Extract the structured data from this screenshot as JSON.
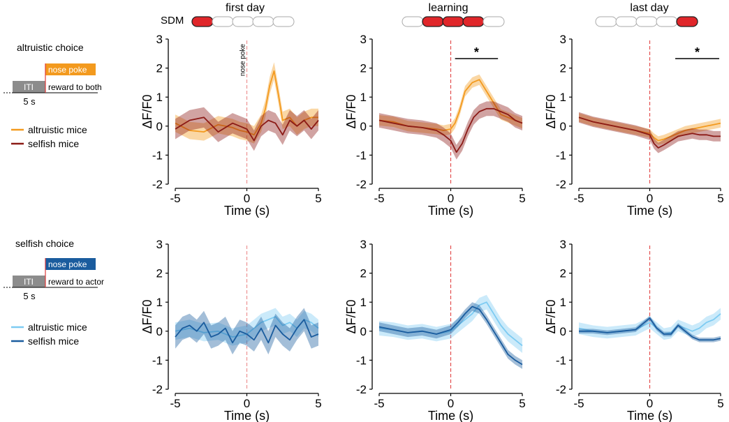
{
  "header": {
    "sdm_label": "SDM",
    "stages": [
      "first day",
      "learning",
      "last day"
    ],
    "sdm_highlight": [
      [
        0
      ],
      [
        1,
        2,
        3
      ],
      [
        4
      ]
    ],
    "pill_count": 5
  },
  "schematics": [
    {
      "title": "altruistic choice",
      "iti_label": "ITI",
      "poke_label": "nose poke",
      "reward_label": "reward to both",
      "duration_label": "5 s",
      "poke_color": "#F39A1E",
      "legend": [
        {
          "label": "altruistic mice",
          "color": "#F39A1E"
        },
        {
          "label": "selfish mice",
          "color": "#8B1A16"
        }
      ]
    },
    {
      "title": "selfish choice",
      "iti_label": "ITI",
      "poke_label": "nose poke",
      "reward_label": "reward to actor",
      "duration_label": "5 s",
      "poke_color": "#1A5C9E",
      "legend": [
        {
          "label": "altruistic mice",
          "color": "#7DCBF2"
        },
        {
          "label": "selfish mice",
          "color": "#1A5C9E"
        }
      ]
    }
  ],
  "colors": {
    "altruistic_orange": "#F39A1E",
    "selfish_red": "#8B1A16",
    "altruistic_blue": "#7DCBF2",
    "selfish_blue": "#1A5C9E",
    "pill_red": "#E0262A",
    "onset_line": "#E03A3A"
  },
  "chart_data": [
    {
      "type": "line",
      "panel": "altruistic choice / first day",
      "xlabel": "Time (s)",
      "ylabel": "ΔF/F0",
      "xlim": [
        -5,
        5
      ],
      "ylim": [
        -2,
        3
      ],
      "xticks": [
        -5,
        0,
        5
      ],
      "yticks": [
        -2,
        -1,
        0,
        1,
        2,
        3
      ],
      "onset_label": "nose poke",
      "series": [
        {
          "name": "altruistic mice",
          "x": [
            -5,
            -4,
            -3,
            -2,
            -1,
            -0.5,
            0,
            0.5,
            1,
            1.3,
            1.6,
            1.9,
            2.2,
            2.5,
            3,
            3.5,
            4,
            4.5,
            5
          ],
          "y": [
            0.1,
            -0.15,
            -0.2,
            0.05,
            -0.05,
            -0.15,
            -0.2,
            -0.3,
            0.1,
            0.6,
            1.4,
            1.9,
            1.1,
            0.2,
            0.3,
            0.0,
            0.2,
            0.3,
            0.3
          ],
          "err": 0.3
        },
        {
          "name": "selfish mice",
          "x": [
            -5,
            -4,
            -3,
            -2,
            -1,
            -0.5,
            0,
            0.5,
            1,
            1.5,
            2,
            2.5,
            3,
            3.5,
            4,
            4.5,
            5
          ],
          "y": [
            -0.1,
            0.2,
            0.3,
            -0.2,
            0.1,
            0.0,
            -0.1,
            -0.5,
            0.0,
            0.2,
            0.1,
            -0.3,
            0.2,
            0.0,
            0.2,
            -0.1,
            0.2
          ],
          "err": 0.35
        }
      ]
    },
    {
      "type": "line",
      "panel": "altruistic choice / learning",
      "xlabel": "Time (s)",
      "ylabel": "ΔF/F0",
      "xlim": [
        -5,
        5
      ],
      "ylim": [
        -2,
        3
      ],
      "xticks": [
        -5,
        0,
        5
      ],
      "yticks": [
        -2,
        -1,
        0,
        1,
        2,
        3
      ],
      "significance": {
        "label": "*",
        "x_start": 0.3,
        "x_end": 3.3
      },
      "series": [
        {
          "name": "altruistic mice",
          "x": [
            -5,
            -4,
            -3,
            -2,
            -1,
            -0.5,
            0,
            0.3,
            0.6,
            1,
            1.5,
            2,
            2.5,
            3,
            3.5,
            4,
            4.5,
            5
          ],
          "y": [
            0.2,
            0.15,
            0.0,
            -0.05,
            -0.1,
            -0.15,
            -0.1,
            0.1,
            0.5,
            1.2,
            1.5,
            1.6,
            1.2,
            0.8,
            0.4,
            0.3,
            0.2,
            0.1
          ],
          "err": 0.18
        },
        {
          "name": "selfish mice",
          "x": [
            -5,
            -4,
            -3,
            -2,
            -1,
            -0.5,
            0,
            0.4,
            0.8,
            1.2,
            1.6,
            2,
            2.5,
            3,
            3.5,
            4,
            4.5,
            5
          ],
          "y": [
            0.2,
            0.1,
            0.0,
            -0.05,
            -0.15,
            -0.3,
            -0.5,
            -0.9,
            -0.6,
            -0.1,
            0.3,
            0.5,
            0.6,
            0.6,
            0.5,
            0.4,
            0.2,
            0.1
          ],
          "err": 0.25
        }
      ]
    },
    {
      "type": "line",
      "panel": "altruistic choice / last day",
      "xlabel": "Time (s)",
      "ylabel": "ΔF/F0",
      "xlim": [
        -5,
        5
      ],
      "ylim": [
        -2,
        3
      ],
      "xticks": [
        -5,
        0,
        5
      ],
      "yticks": [
        -2,
        -1,
        0,
        1,
        2,
        3
      ],
      "significance": {
        "label": "*",
        "x_start": 1.8,
        "x_end": 4.9
      },
      "series": [
        {
          "name": "altruistic mice",
          "x": [
            -5,
            -4,
            -3,
            -2,
            -1,
            0,
            0.3,
            0.6,
            1,
            1.5,
            2,
            2.5,
            3,
            3.5,
            4,
            4.5,
            5
          ],
          "y": [
            0.3,
            0.15,
            0.05,
            -0.05,
            -0.15,
            -0.25,
            -0.4,
            -0.5,
            -0.45,
            -0.35,
            -0.25,
            -0.15,
            -0.1,
            -0.05,
            0.0,
            0.05,
            0.1
          ],
          "err": 0.15
        },
        {
          "name": "selfish mice",
          "x": [
            -5,
            -4,
            -3,
            -2,
            -1,
            0,
            0.3,
            0.6,
            1,
            1.5,
            2,
            2.5,
            3,
            3.5,
            4,
            4.5,
            5
          ],
          "y": [
            0.3,
            0.15,
            0.05,
            -0.05,
            -0.15,
            -0.3,
            -0.6,
            -0.75,
            -0.65,
            -0.5,
            -0.35,
            -0.3,
            -0.25,
            -0.3,
            -0.3,
            -0.35,
            -0.35
          ],
          "err": 0.18
        }
      ]
    },
    {
      "type": "line",
      "panel": "selfish choice / first day",
      "xlabel": "Time (s)",
      "ylabel": "ΔF/F0",
      "xlim": [
        -5,
        5
      ],
      "ylim": [
        -2,
        3
      ],
      "xticks": [
        -5,
        0,
        5
      ],
      "yticks": [
        -2,
        -1,
        0,
        1,
        2,
        3
      ],
      "series": [
        {
          "name": "altruistic mice",
          "x": [
            -5,
            -4,
            -3,
            -2,
            -1,
            0,
            0.5,
            1,
            1.5,
            2,
            2.5,
            3,
            3.5,
            4,
            4.5,
            5
          ],
          "y": [
            0.0,
            0.1,
            -0.05,
            0.0,
            -0.2,
            -0.1,
            0.1,
            0.3,
            0.4,
            0.5,
            0.2,
            0.3,
            0.1,
            0.4,
            0.3,
            0.1
          ],
          "err": 0.3
        },
        {
          "name": "selfish mice",
          "x": [
            -5,
            -4.5,
            -4,
            -3.5,
            -3,
            -2.5,
            -2,
            -1.5,
            -1,
            -0.5,
            0,
            0.5,
            1,
            1.5,
            2,
            2.5,
            3,
            3.5,
            4,
            4.5,
            5
          ],
          "y": [
            -0.2,
            0.1,
            0.2,
            0.0,
            0.3,
            -0.2,
            -0.1,
            0.1,
            -0.4,
            0.0,
            -0.1,
            -0.3,
            0.1,
            -0.4,
            0.2,
            -0.1,
            -0.3,
            0.1,
            0.4,
            -0.2,
            -0.1
          ],
          "err": 0.4
        }
      ]
    },
    {
      "type": "line",
      "panel": "selfish choice / learning",
      "xlabel": "Time (s)",
      "ylabel": "ΔF/F0",
      "xlim": [
        -5,
        5
      ],
      "ylim": [
        -2,
        3
      ],
      "xticks": [
        -5,
        0,
        5
      ],
      "yticks": [
        -2,
        -1,
        0,
        1,
        2,
        3
      ],
      "series": [
        {
          "name": "altruistic mice",
          "x": [
            -5,
            -4,
            -3,
            -2,
            -1,
            0,
            0.5,
            1,
            1.5,
            2,
            2.5,
            3,
            3.5,
            4,
            4.5,
            5
          ],
          "y": [
            0.1,
            0.05,
            -0.05,
            0.0,
            -0.1,
            0.0,
            0.2,
            0.4,
            0.6,
            0.9,
            1.0,
            0.6,
            0.2,
            -0.1,
            -0.3,
            -0.5
          ],
          "err": 0.25
        },
        {
          "name": "selfish mice",
          "x": [
            -5,
            -4,
            -3,
            -2,
            -1,
            0,
            0.5,
            1,
            1.5,
            2,
            2.5,
            3,
            3.5,
            4,
            4.5,
            5
          ],
          "y": [
            0.15,
            0.05,
            -0.05,
            0.0,
            -0.1,
            0.05,
            0.3,
            0.6,
            0.85,
            0.75,
            0.4,
            0.0,
            -0.4,
            -0.8,
            -1.0,
            -1.15
          ],
          "err": 0.15
        }
      ]
    },
    {
      "type": "line",
      "panel": "selfish choice / last day",
      "xlabel": "Time (s)",
      "ylabel": "ΔF/F0",
      "xlim": [
        -5,
        5
      ],
      "ylim": [
        -2,
        3
      ],
      "xticks": [
        -5,
        0,
        5
      ],
      "yticks": [
        -2,
        -1,
        0,
        1,
        2,
        3
      ],
      "series": [
        {
          "name": "altruistic mice",
          "x": [
            -5,
            -4,
            -3,
            -2,
            -1,
            0,
            0.5,
            1,
            1.5,
            2,
            2.5,
            3,
            3.5,
            4,
            4.5,
            5
          ],
          "y": [
            0.1,
            0.0,
            -0.05,
            0.0,
            0.05,
            0.3,
            0.1,
            -0.1,
            -0.05,
            0.2,
            0.1,
            0.0,
            0.1,
            0.3,
            0.4,
            0.6
          ],
          "err": 0.2
        },
        {
          "name": "selfish mice",
          "x": [
            -5,
            -4,
            -3,
            -2,
            -1,
            0,
            0.5,
            1,
            1.5,
            2,
            2.5,
            3,
            3.5,
            4,
            4.5,
            5
          ],
          "y": [
            0.0,
            0.0,
            -0.05,
            0.0,
            0.05,
            0.45,
            0.1,
            -0.1,
            -0.1,
            0.2,
            0.0,
            -0.2,
            -0.3,
            -0.3,
            -0.3,
            -0.25
          ],
          "err": 0.08
        }
      ]
    }
  ]
}
